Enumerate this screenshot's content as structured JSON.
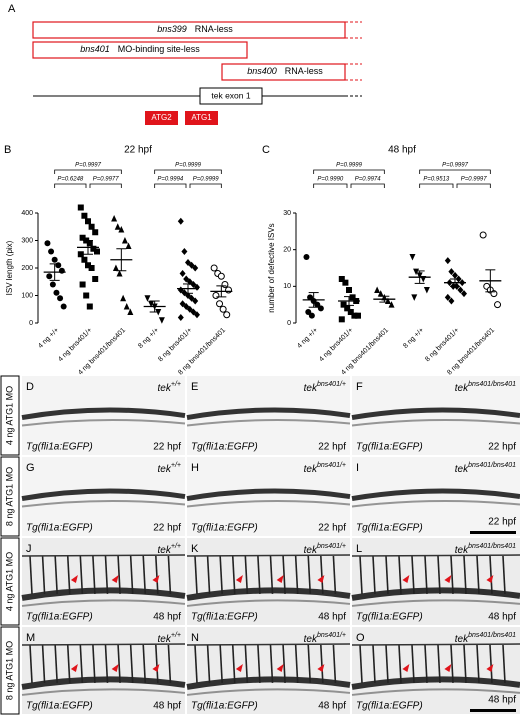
{
  "panel_a": {
    "label": "A",
    "constructs": [
      {
        "allele": "bns399",
        "description": "RNA-less"
      },
      {
        "allele": "bns401",
        "description": "MO-binding site-less"
      },
      {
        "allele": "bns400",
        "description": "RNA-less"
      }
    ],
    "exon": "tek exon 1",
    "atg": [
      "ATG2",
      "ATG1"
    ]
  },
  "chart_data": [
    {
      "type": "dot",
      "label": "B",
      "title": "22 hpf",
      "ylabel": "ISV length (pix)",
      "categories": [
        "4 ng +/+",
        "4 ng bns401/+",
        "4 ng bns401/bns401",
        "8 ng +/+",
        "8 ng bns401/+",
        "8 ng bns401/bns401"
      ],
      "markers": [
        "circle",
        "square",
        "triangle",
        "triangle-down",
        "diamond",
        "circle-open"
      ],
      "points": [
        [
          290,
          260,
          230,
          210,
          190,
          170,
          140,
          110,
          90,
          60
        ],
        [
          420,
          390,
          370,
          350,
          330,
          310,
          300,
          290,
          270,
          260,
          250,
          230,
          210,
          200,
          160,
          140,
          100,
          60
        ],
        [
          380,
          350,
          340,
          300,
          280,
          200,
          180,
          90,
          60,
          40
        ],
        [
          90,
          70,
          60,
          40,
          10
        ],
        [
          370,
          260,
          220,
          210,
          200,
          180,
          160,
          150,
          140,
          130,
          120,
          110,
          100,
          90,
          80,
          70,
          60,
          50,
          40,
          30,
          20
        ],
        [
          200,
          180,
          170,
          140,
          120,
          100,
          70,
          50,
          30
        ]
      ],
      "means": [
        185,
        275,
        230,
        60,
        125,
        115
      ],
      "sem": [
        30,
        25,
        40,
        20,
        17,
        20
      ],
      "comparisons": [
        "P=0.9997",
        "P=0.6248",
        "P=0.9977",
        "P=0.9999",
        "P=0.9994",
        "P=0.9999"
      ],
      "ylim": [
        0,
        400
      ],
      "yticks": [
        0,
        100,
        200,
        300,
        400
      ],
      "color": "#000000"
    },
    {
      "type": "dot",
      "label": "C",
      "title": "48 hpf",
      "ylabel": "number of defective ISVs",
      "categories": [
        "4 ng +/+",
        "4 ng bns401/+",
        "4 ng bns401/bns401",
        "8 ng +/+",
        "8 ng bns401/+",
        "8 ng bns401/bns401"
      ],
      "markers": [
        "circle",
        "square",
        "triangle",
        "triangle-down",
        "diamond",
        "circle-open"
      ],
      "points": [
        [
          18,
          7,
          6,
          5,
          4,
          3,
          2
        ],
        [
          12,
          11,
          9,
          7,
          6,
          5,
          4,
          3,
          2,
          2,
          1
        ],
        [
          9,
          8,
          7,
          6,
          5
        ],
        [
          18,
          14,
          13,
          12,
          9,
          7
        ],
        [
          17,
          14,
          13,
          12,
          11,
          11,
          10,
          10,
          9,
          8,
          7,
          6
        ],
        [
          24,
          10,
          9,
          8,
          5
        ]
      ],
      "means": [
        6.3,
        6,
        6.5,
        12.5,
        11,
        11.5
      ],
      "sem": [
        2,
        1.2,
        0.8,
        1.7,
        1,
        3
      ],
      "comparisons": [
        "P=0.9999",
        "P=0.9990",
        "P=0.9974",
        "P=0.9997",
        "P=0.9513",
        "P=0.9997"
      ],
      "ylim": [
        0,
        30
      ],
      "yticks": [
        0,
        10,
        20,
        30
      ],
      "color": "#000000"
    }
  ],
  "images": {
    "rows": [
      {
        "treatment": "4 ng ATG1 MO",
        "panels": [
          {
            "label": "D",
            "gene": "tek",
            "genotype": "+/+",
            "transgene": "Tg(fli1a:EGFP)",
            "stage": "22 hpf"
          },
          {
            "label": "E",
            "gene": "tek",
            "genotype": "bns401/+",
            "transgene": "Tg(fli1a:EGFP)",
            "stage": "22 hpf"
          },
          {
            "label": "F",
            "gene": "tek",
            "genotype": "bns401/bns401",
            "transgene": "Tg(fli1a:EGFP)",
            "stage": "22 hpf"
          }
        ]
      },
      {
        "treatment": "8 ng ATG1 MO",
        "panels": [
          {
            "label": "G",
            "gene": "tek",
            "genotype": "+/+",
            "transgene": "Tg(fli1a:EGFP)",
            "stage": "22 hpf"
          },
          {
            "label": "H",
            "gene": "tek",
            "genotype": "bns401/+",
            "transgene": "Tg(fli1a:EGFP)",
            "stage": "22 hpf"
          },
          {
            "label": "I",
            "gene": "tek",
            "genotype": "bns401/bns401",
            "transgene": "Tg(fli1a:EGFP)",
            "stage": "22 hpf"
          }
        ]
      },
      {
        "treatment": "4 ng ATG1 MO",
        "panels": [
          {
            "label": "J",
            "gene": "tek",
            "genotype": "+/+",
            "transgene": "Tg(fli1a:EGFP)",
            "stage": "48 hpf"
          },
          {
            "label": "K",
            "gene": "tek",
            "genotype": "bns401/+",
            "transgene": "Tg(fli1a:EGFP)",
            "stage": "48 hpf"
          },
          {
            "label": "L",
            "gene": "tek",
            "genotype": "bns401/bns401",
            "transgene": "Tg(fli1a:EGFP)",
            "stage": "48 hpf"
          }
        ]
      },
      {
        "treatment": "8 ng ATG1 MO",
        "panels": [
          {
            "label": "M",
            "gene": "tek",
            "genotype": "+/+",
            "transgene": "Tg(fli1a:EGFP)",
            "stage": "48 hpf"
          },
          {
            "label": "N",
            "gene": "tek",
            "genotype": "bns401/+",
            "transgene": "Tg(fli1a:EGFP)",
            "stage": "48 hpf"
          },
          {
            "label": "O",
            "gene": "tek",
            "genotype": "bns401/bns401",
            "transgene": "Tg(fli1a:EGFP)",
            "stage": "48 hpf"
          }
        ]
      }
    ]
  }
}
